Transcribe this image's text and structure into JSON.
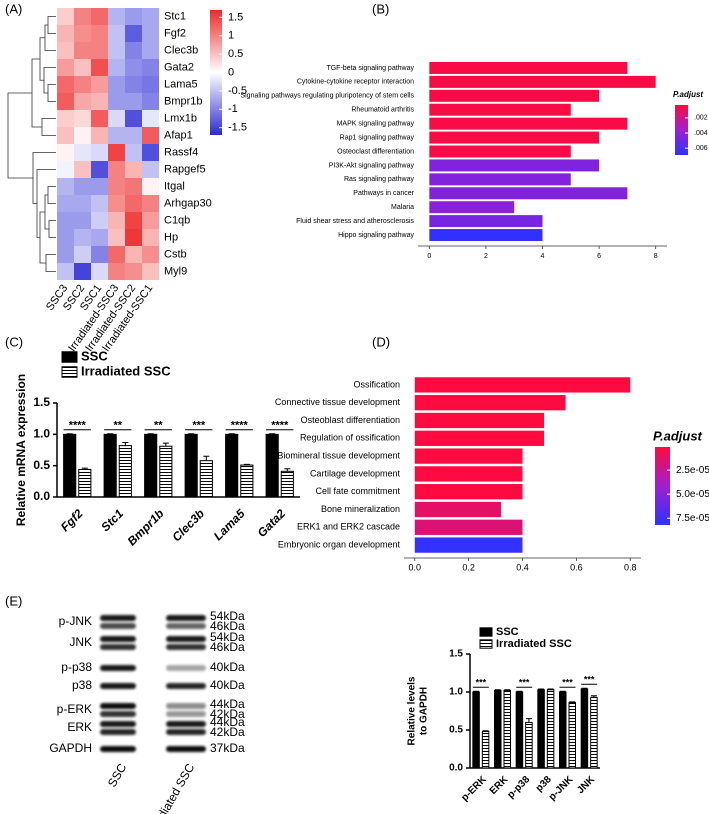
{
  "chart_data": [
    {
      "type": "heatmap",
      "panel_label": "(A)",
      "rows": [
        "Stc1",
        "Fgf2",
        "Clec3b",
        "Gata2",
        "Lama5",
        "Bmpr1b",
        "Lmx1b",
        "Afap1",
        "Rassf4",
        "Rapgef5",
        "Itgal",
        "Arhgap30",
        "C1qb",
        "Hp",
        "Cstb",
        "Myl9"
      ],
      "columns": [
        "SSC3",
        "SSC2",
        "SSC1",
        "Irradiated-SSC3",
        "Irradiated-SSC2",
        "Irradiated-SSC1"
      ],
      "values": [
        [
          0.4,
          1.0,
          1.2,
          -0.6,
          -0.8,
          -0.7
        ],
        [
          0.6,
          0.9,
          1.0,
          -0.5,
          -1.3,
          -0.7
        ],
        [
          0.5,
          1.0,
          1.0,
          -0.5,
          -1.0,
          -0.7
        ],
        [
          0.8,
          0.5,
          1.4,
          -0.6,
          -0.9,
          -1.0
        ],
        [
          1.2,
          1.0,
          0.8,
          -0.8,
          -1.0,
          -1.1
        ],
        [
          1.3,
          0.7,
          0.6,
          -0.8,
          -0.8,
          -1.0
        ],
        [
          0.4,
          0.3,
          1.3,
          -0.3,
          -1.4,
          -0.2
        ],
        [
          0.5,
          0.1,
          0.6,
          -0.6,
          -0.6,
          1.3
        ],
        [
          0.1,
          -0.2,
          -0.3,
          1.5,
          -0.5,
          -1.4
        ],
        [
          -0.1,
          0.5,
          -1.4,
          1.0,
          0.6,
          -0.5
        ],
        [
          -0.6,
          -0.8,
          -0.8,
          1.0,
          1.1,
          0.1
        ],
        [
          -0.7,
          -0.7,
          -0.5,
          0.9,
          1.2,
          1.0
        ],
        [
          -0.8,
          -0.8,
          -0.4,
          0.6,
          1.5,
          0.8
        ],
        [
          -0.8,
          -0.6,
          -0.7,
          0.5,
          1.6,
          0.6
        ],
        [
          -0.8,
          -0.4,
          -1.0,
          1.2,
          0.6,
          0.9
        ],
        [
          -0.5,
          -1.5,
          -0.3,
          1.0,
          0.9,
          0.5
        ]
      ],
      "clim": [
        -1.7,
        1.7
      ],
      "colors": [
        "#2b2bd6",
        "#ffffff",
        "#ee2a2a"
      ],
      "colorbar_ticks": [
        1.5,
        1,
        0.5,
        0,
        -0.5,
        -1,
        -1.5
      ]
    },
    {
      "type": "hbar",
      "panel_label": "(B)",
      "categories": [
        "TGF-beta signaling pathway",
        "Cytokine-cytokine receptor interaction",
        "Signaling pathways regulating pluripotency of stem cells",
        "Rheumatoid arthritis",
        "MAPK signaling pathway",
        "Rap1 signaling pathway",
        "Osteoclast differentiation",
        "PI3K-Akt signaling pathway",
        "Ras signaling pathway",
        "Pathways in cancer",
        "Malaria",
        "Fluid shear stress and atherosclerosis",
        "Hippo signaling pathway"
      ],
      "values": [
        7,
        8,
        6,
        5,
        7,
        6,
        5,
        6,
        5,
        7,
        3,
        4,
        4
      ],
      "color_values": [
        0.0005,
        0.0005,
        0.0005,
        0.0005,
        0.0005,
        0.0005,
        0.0005,
        0.0045,
        0.0045,
        0.0045,
        0.0042,
        0.0048,
        0.0068
      ],
      "xlim": [
        -0.4,
        8.4
      ],
      "xticks": [
        0,
        2,
        4,
        6,
        8
      ],
      "colorbar": {
        "title": "P.adjust",
        "lim": [
          0.0003,
          0.0069
        ],
        "colors": [
          "#ff0a3c",
          "#a01ed2",
          "#2d32ff"
        ],
        "ticks": [
          {
            "value": 0.002,
            "label": ".002"
          },
          {
            "value": 0.004,
            "label": ".004"
          },
          {
            "value": 0.006,
            "label": ".006"
          }
        ]
      }
    },
    {
      "type": "grouped_bar",
      "panel_label": "(C)",
      "ylabel": [
        "Relative mRNA expression"
      ],
      "categories": [
        "Fgf2",
        "Stc1",
        "Bmpr1b",
        "Clec3b",
        "Lama5",
        "Gata2"
      ],
      "series": [
        {
          "name": "SSC",
          "color": "#000000",
          "hatch": false,
          "values": [
            1.0,
            1.0,
            1.0,
            1.0,
            1.0,
            1.0
          ],
          "errors": [
            0.01,
            0.01,
            0.01,
            0.01,
            0.01,
            0.01
          ]
        },
        {
          "name": "Irradiated SSC",
          "color": "#ffffff",
          "hatch": true,
          "values": [
            0.44,
            0.82,
            0.81,
            0.58,
            0.51,
            0.41
          ],
          "errors": [
            0.02,
            0.05,
            0.05,
            0.07,
            0.01,
            0.04
          ]
        }
      ],
      "significance": [
        "****",
        "**",
        "**",
        "***",
        "****",
        "****"
      ],
      "ylim": [
        0,
        1.5
      ],
      "yticks": [
        {
          "value": 0,
          "label": "0.0"
        },
        0.5,
        {
          "value": 1,
          "label": "1.0"
        },
        1.5
      ],
      "legend": "upper left"
    },
    {
      "type": "hbar",
      "panel_label": "(D)",
      "categories": [
        "Ossification",
        "Connective tissue development",
        "Osteoblast differentiation",
        "Regulation of ossification",
        "Biomineral tissue development",
        "Cartilage development",
        "Cell fate commitment",
        "Bone mineralization",
        "ERK1 and ERK2 cascade",
        "Embryonic organ development"
      ],
      "values": [
        0.8,
        0.56,
        0.48,
        0.48,
        0.4,
        0.4,
        0.4,
        0.32,
        0.4,
        0.4
      ],
      "color_values": [
        2e-06,
        2e-06,
        2e-06,
        2e-06,
        2e-06,
        2e-06,
        2e-06,
        1.2e-05,
        1.6e-05,
        8e-05
      ],
      "xlim": [
        -0.04,
        0.84
      ],
      "xticks": [
        {
          "value": 0,
          "label": "0.0"
        },
        0.2,
        0.4,
        0.6,
        0.8
      ],
      "colorbar": {
        "title": "P.adjust",
        "lim": [
          1e-06,
          8.2e-05
        ],
        "colors": [
          "#ff0a3c",
          "#a01ed2",
          "#2d32ff"
        ],
        "ticks": [
          {
            "value": 2.5e-05,
            "label": "2.5e-05"
          },
          {
            "value": 5e-05,
            "label": "5.0e-05"
          },
          {
            "value": 7.5e-05,
            "label": "7.5e-05"
          }
        ]
      }
    },
    {
      "type": "blot",
      "panel_label": "(E)",
      "proteins": [
        "p-JNK",
        "JNK",
        "p-p38",
        "p38",
        "p-ERK",
        "ERK",
        "GAPDH"
      ],
      "sizes": [
        [
          "54kDa",
          "46kDa"
        ],
        [
          "54kDa",
          "46kDa"
        ],
        [
          "40kDa"
        ],
        [
          "40kDa"
        ],
        [
          "44kDa",
          "42kDa"
        ],
        [
          "44kDa",
          "42kDa"
        ],
        [
          "37kDa"
        ]
      ],
      "lanes": [
        "SSC",
        "Irradiated SSC"
      ]
    },
    {
      "type": "grouped_bar",
      "ylabel": [
        "Relative levels",
        "to GAPDH"
      ],
      "categories": [
        "p-ERK",
        "ERK",
        "p-p38",
        "p38",
        "p-JNK",
        "JNK"
      ],
      "series": [
        {
          "name": "SSC",
          "color": "#000000",
          "hatch": false,
          "values": [
            1.0,
            1.02,
            1.0,
            1.03,
            1.0,
            1.04
          ],
          "errors": [
            0.01,
            0.01,
            0.01,
            0.01,
            0.01,
            0.01
          ]
        },
        {
          "name": "Irradiated SSC",
          "color": "#ffffff",
          "hatch": true,
          "values": [
            0.48,
            1.02,
            0.6,
            1.03,
            0.86,
            0.93
          ],
          "errors": [
            0.01,
            0.01,
            0.05,
            0.01,
            0.01,
            0.02
          ]
        }
      ],
      "significance": [
        "***",
        null,
        "***",
        null,
        "***",
        "***"
      ],
      "ylim": [
        0,
        1.5
      ],
      "yticks": [
        {
          "value": 0,
          "label": "0.0"
        },
        0.5,
        {
          "value": 1,
          "label": "1.0"
        },
        1.5
      ],
      "legend": "upper left"
    }
  ]
}
